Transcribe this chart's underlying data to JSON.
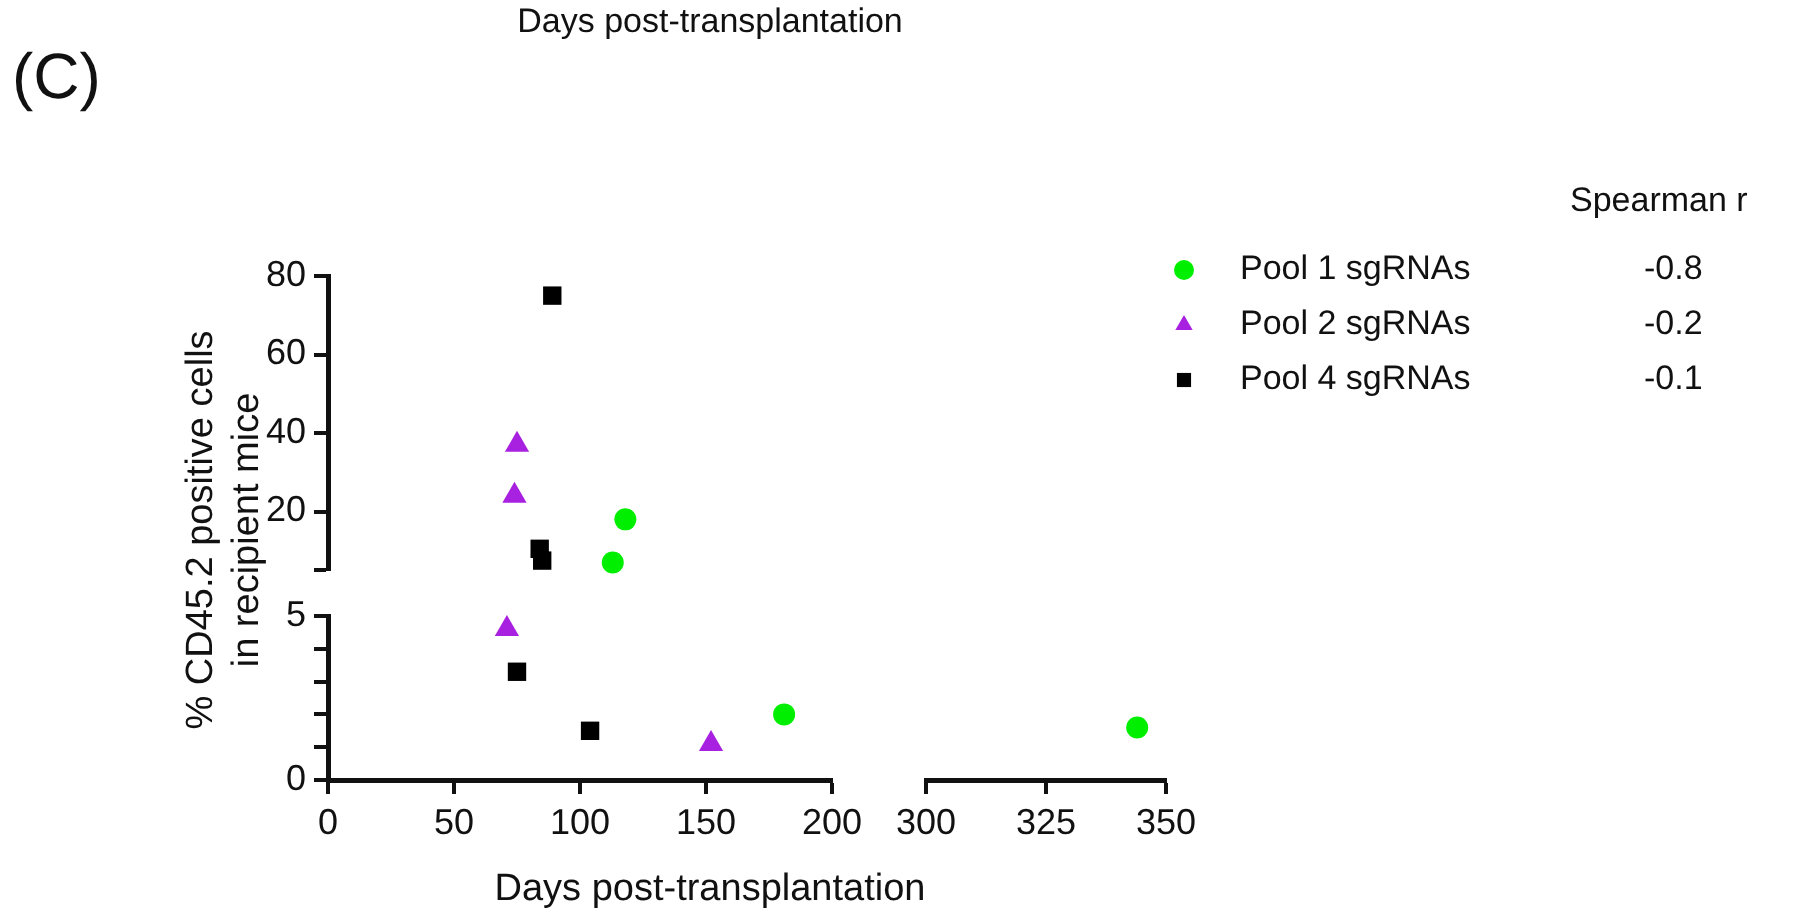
{
  "chart_data": [
    {
      "type": "scatter",
      "title": "(C)",
      "subtitle": "Days post-transplantation",
      "ylabel": "% CD45.2 positive cells in recipient mice",
      "annotations": [
        "Spearman r",
        "-0.8",
        "-0.2",
        "-0.1"
      ],
      "xlim": [
        0,
        200
      ],
      "ylim": [
        5,
        80
      ],
      "yticks": [
        {
          "value": 5,
          "label": null
        },
        20,
        40,
        60,
        80
      ],
      "tick_labels": "y",
      "legend": "right",
      "series": [
        {
          "name": "Pool 1 sgRNAs",
          "color": "#00ee00",
          "marker": "circle",
          "x": [
            118,
            113
          ],
          "values": [
            18,
            7
          ]
        },
        {
          "name": "Pool 2 sgRNAs",
          "color": "#a820e0",
          "marker": "triangle",
          "x": [
            75,
            74
          ],
          "values": [
            37,
            24
          ]
        },
        {
          "name": "Pool 4 sgRNAs",
          "color": "#000000",
          "marker": "square",
          "x": [
            89,
            84,
            85
          ],
          "values": [
            75,
            10.5,
            7.5
          ]
        }
      ]
    },
    {
      "type": "scatter",
      "xlabel": "Days post-transplantation",
      "xlim": [
        0,
        200
      ],
      "xticks": [
        0,
        50,
        100,
        150,
        200
      ],
      "ylim": [
        0,
        5
      ],
      "yticks": [
        0,
        {
          "value": 1,
          "label": null
        },
        {
          "value": 2,
          "label": null
        },
        {
          "value": 3,
          "label": null
        },
        {
          "value": 4,
          "label": null
        },
        5
      ],
      "series": [
        {
          "color": "#00ee00",
          "marker": "circle",
          "x": [
            181
          ],
          "values": [
            2.0
          ]
        },
        {
          "color": "#a820e0",
          "marker": "triangle",
          "x": [
            71,
            152
          ],
          "values": [
            4.6,
            1.1
          ]
        },
        {
          "color": "#000000",
          "marker": "square",
          "x": [
            75,
            104
          ],
          "values": [
            3.3,
            1.5
          ]
        }
      ]
    },
    {
      "type": "scatter",
      "xlim": [
        300,
        350
      ],
      "xticks": [
        300,
        325,
        350
      ],
      "ylim": [
        0,
        5
      ],
      "tick_labels": "x",
      "series": [
        {
          "color": "#00ee00",
          "marker": "circle",
          "x": [
            344
          ],
          "values": [
            1.6
          ]
        }
      ]
    }
  ]
}
